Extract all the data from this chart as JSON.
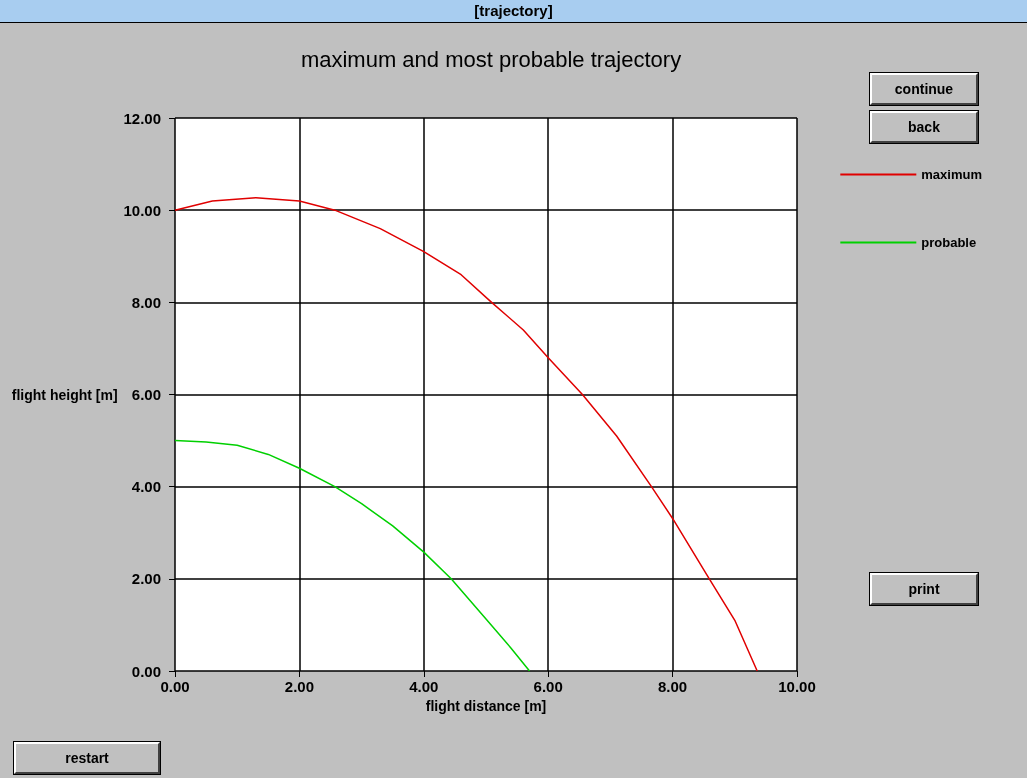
{
  "chart_data": {
    "type": "line",
    "title": "maximum and most probable trajectory",
    "xlabel": "flight distance [m]",
    "ylabel": "flight height [m]",
    "xlim": [
      0,
      10
    ],
    "xticks": [
      {
        "value": 0,
        "label": "0.00"
      },
      {
        "value": 2,
        "label": "2.00"
      },
      {
        "value": 4,
        "label": "4.00"
      },
      {
        "value": 6,
        "label": "6.00"
      },
      {
        "value": 8,
        "label": "8.00"
      },
      {
        "value": 10,
        "label": "10.00"
      }
    ],
    "ylim": [
      0,
      12
    ],
    "yticks": [
      {
        "value": 0,
        "label": "0.00"
      },
      {
        "value": 2,
        "label": "2.00"
      },
      {
        "value": 4,
        "label": "4.00"
      },
      {
        "value": 6,
        "label": "6.00"
      },
      {
        "value": 8,
        "label": "8.00"
      },
      {
        "value": 10,
        "label": "10.00"
      },
      {
        "value": 12,
        "label": "12.00"
      }
    ],
    "grid": true,
    "legend": "right",
    "marker": "none",
    "line_style": "solid",
    "annotations": [
      "[trajectory]",
      "continue",
      "back",
      "print",
      "restart"
    ],
    "series": [
      {
        "name": "maximum",
        "color": "#e00000",
        "x": [
          0,
          0.6,
          1.3,
          2,
          2.57,
          3.3,
          4,
          4.6,
          5.09,
          5.6,
          6,
          6.55,
          7.1,
          7.66,
          8,
          8.59,
          9,
          9.36
        ],
        "values": [
          10,
          10.2,
          10.27,
          10.2,
          10,
          9.6,
          9.1,
          8.6,
          8,
          7.4,
          6.8,
          6,
          5.1,
          4,
          3.31,
          2,
          1.1,
          0
        ]
      },
      {
        "name": "probable",
        "color": "#00d000",
        "x": [
          0,
          0.5,
          1,
          1.5,
          2,
          2.57,
          3,
          3.5,
          4,
          4.44,
          5,
          5.4,
          5.7
        ],
        "values": [
          5,
          4.97,
          4.9,
          4.7,
          4.4,
          4,
          3.63,
          3.15,
          2.58,
          2,
          1.13,
          0.5,
          0
        ]
      }
    ]
  }
}
